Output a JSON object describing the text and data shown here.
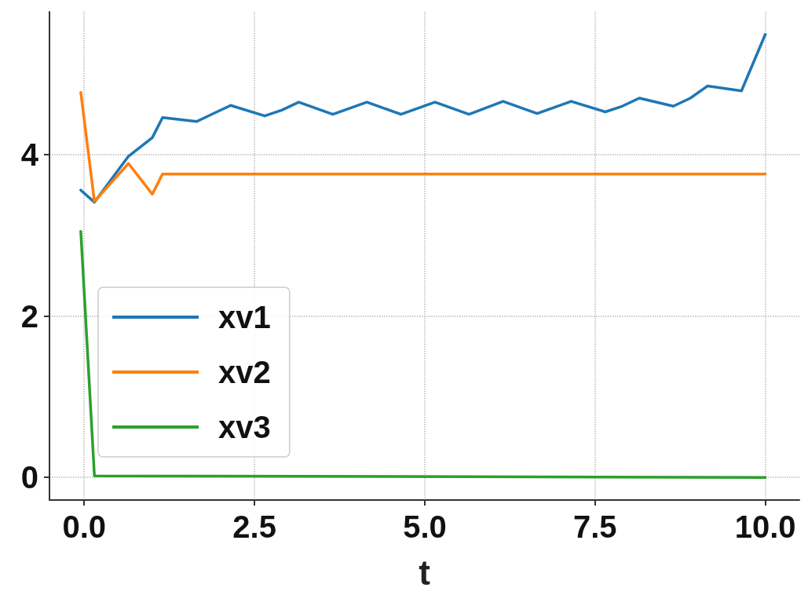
{
  "chart_data": {
    "type": "line",
    "xlabel": "t",
    "xlim": [
      -0.51,
      10.5
    ],
    "ylim": [
      -0.28,
      5.77
    ],
    "xticks": [
      {
        "value": 0,
        "label": "0.0"
      },
      {
        "value": 2.5,
        "label": "2.5"
      },
      {
        "value": 5,
        "label": "5.0"
      },
      {
        "value": 7.5,
        "label": "7.5"
      },
      {
        "value": 10,
        "label": "10.0"
      }
    ],
    "yticks": [
      0,
      2,
      4
    ],
    "grid": true,
    "legend": "bottom left",
    "marker": "none",
    "line_style": "solid",
    "series": [
      {
        "name": "xv1",
        "color": "#1f77b4",
        "x": [
          -0.05,
          0.15,
          0.65,
          1.0,
          1.15,
          1.65,
          1.9,
          2.15,
          2.65,
          2.9,
          3.15,
          3.65,
          4.15,
          4.65,
          5.15,
          5.65,
          6.15,
          6.65,
          7.15,
          7.65,
          7.9,
          8.15,
          8.65,
          8.9,
          9.15,
          9.65,
          10.0
        ],
        "values": [
          3.56,
          3.41,
          3.98,
          4.21,
          4.46,
          4.41,
          4.51,
          4.61,
          4.48,
          4.55,
          4.65,
          4.5,
          4.65,
          4.5,
          4.65,
          4.5,
          4.66,
          4.51,
          4.66,
          4.53,
          4.6,
          4.7,
          4.6,
          4.7,
          4.85,
          4.79,
          5.49
        ]
      },
      {
        "name": "xv2",
        "color": "#ff7f0e",
        "x": [
          -0.05,
          0.15,
          0.65,
          1.0,
          1.15,
          10.0
        ],
        "values": [
          4.77,
          3.42,
          3.89,
          3.51,
          3.76,
          3.76
        ]
      },
      {
        "name": "xv3",
        "color": "#2ca02c",
        "x": [
          -0.05,
          0.15,
          10.0
        ],
        "values": [
          3.05,
          0.02,
          0.0
        ]
      }
    ]
  }
}
